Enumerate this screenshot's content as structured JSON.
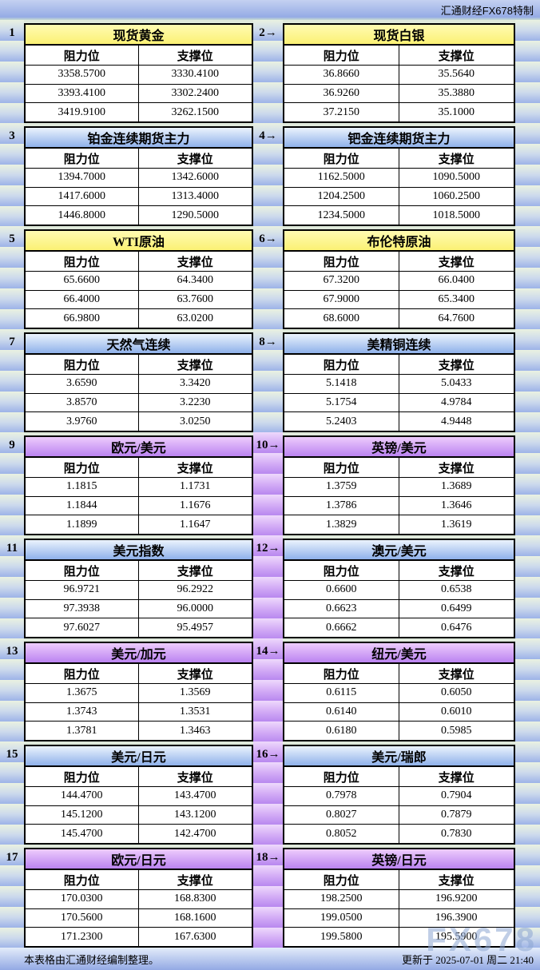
{
  "top_bar": {
    "brand": "汇通财经FX678特制"
  },
  "labels": {
    "resistance": "阻力位",
    "support": "支撑位"
  },
  "sections": [
    {
      "gap": "green",
      "left": {
        "num": "1",
        "title": "现货黄金",
        "theme": "yellow",
        "rows": [
          [
            "3358.5700",
            "3330.4100"
          ],
          [
            "3393.4100",
            "3302.2400"
          ],
          [
            "3419.9100",
            "3262.1500"
          ]
        ]
      },
      "right": {
        "num": "2→",
        "title": "现货白银",
        "theme": "yellow",
        "rows": [
          [
            "36.8660",
            "35.5640"
          ],
          [
            "36.9260",
            "35.3880"
          ],
          [
            "37.2150",
            "35.1000"
          ]
        ]
      }
    },
    {
      "gap": "green",
      "left": {
        "num": "3",
        "title": "铂金连续期货主力",
        "theme": "blue",
        "rows": [
          [
            "1394.7000",
            "1342.6000"
          ],
          [
            "1417.6000",
            "1313.4000"
          ],
          [
            "1446.8000",
            "1290.5000"
          ]
        ]
      },
      "right": {
        "num": "4→",
        "title": "钯金连续期货主力",
        "theme": "blue",
        "rows": [
          [
            "1162.5000",
            "1090.5000"
          ],
          [
            "1204.2500",
            "1060.2500"
          ],
          [
            "1234.5000",
            "1018.5000"
          ]
        ]
      }
    },
    {
      "gap": "green",
      "left": {
        "num": "5",
        "title": "WTI原油",
        "theme": "yellow",
        "rows": [
          [
            "65.6600",
            "64.3400"
          ],
          [
            "66.4000",
            "63.7600"
          ],
          [
            "66.9800",
            "63.0200"
          ]
        ]
      },
      "right": {
        "num": "6→",
        "title": "布伦特原油",
        "theme": "yellow",
        "rows": [
          [
            "67.3200",
            "66.0400"
          ],
          [
            "67.9000",
            "65.3400"
          ],
          [
            "68.6000",
            "64.7600"
          ]
        ]
      }
    },
    {
      "gap": "green",
      "left": {
        "num": "7",
        "title": "天然气连续",
        "theme": "blue",
        "rows": [
          [
            "3.6590",
            "3.3420"
          ],
          [
            "3.8570",
            "3.2230"
          ],
          [
            "3.9760",
            "3.0250"
          ]
        ]
      },
      "right": {
        "num": "8→",
        "title": "美精铜连续",
        "theme": "blue",
        "rows": [
          [
            "5.1418",
            "5.0433"
          ],
          [
            "5.1754",
            "4.9784"
          ],
          [
            "5.2403",
            "4.9448"
          ]
        ]
      }
    },
    {
      "gap": "purple",
      "left": {
        "num": "9",
        "title": "欧元/美元",
        "theme": "purple",
        "rows": [
          [
            "1.1815",
            "1.1731"
          ],
          [
            "1.1844",
            "1.1676"
          ],
          [
            "1.1899",
            "1.1647"
          ]
        ]
      },
      "right": {
        "num": "10→",
        "title": "英镑/美元",
        "theme": "purple",
        "rows": [
          [
            "1.3759",
            "1.3689"
          ],
          [
            "1.3786",
            "1.3646"
          ],
          [
            "1.3829",
            "1.3619"
          ]
        ]
      }
    },
    {
      "gap": "purple",
      "left": {
        "num": "11",
        "title": "美元指数",
        "theme": "blue",
        "rows": [
          [
            "96.9721",
            "96.2922"
          ],
          [
            "97.3938",
            "96.0000"
          ],
          [
            "97.6027",
            "95.4957"
          ]
        ]
      },
      "right": {
        "num": "12→",
        "title": "澳元/美元",
        "theme": "blue",
        "rows": [
          [
            "0.6600",
            "0.6538"
          ],
          [
            "0.6623",
            "0.6499"
          ],
          [
            "0.6662",
            "0.6476"
          ]
        ]
      }
    },
    {
      "gap": "purple",
      "left": {
        "num": "13",
        "title": "美元/加元",
        "theme": "purple",
        "rows": [
          [
            "1.3675",
            "1.3569"
          ],
          [
            "1.3743",
            "1.3531"
          ],
          [
            "1.3781",
            "1.3463"
          ]
        ]
      },
      "right": {
        "num": "14→",
        "title": "纽元/美元",
        "theme": "purple",
        "rows": [
          [
            "0.6115",
            "0.6050"
          ],
          [
            "0.6140",
            "0.6010"
          ],
          [
            "0.6180",
            "0.5985"
          ]
        ]
      }
    },
    {
      "gap": "purple",
      "left": {
        "num": "15",
        "title": "美元/日元",
        "theme": "blue",
        "rows": [
          [
            "144.4700",
            "143.4700"
          ],
          [
            "145.1200",
            "143.1200"
          ],
          [
            "145.4700",
            "142.4700"
          ]
        ]
      },
      "right": {
        "num": "16→",
        "title": "美元/瑞郎",
        "theme": "blue",
        "rows": [
          [
            "0.7978",
            "0.7904"
          ],
          [
            "0.8027",
            "0.7879"
          ],
          [
            "0.8052",
            "0.7830"
          ]
        ]
      }
    },
    {
      "gap": "purple",
      "left": {
        "num": "17",
        "title": "欧元/日元",
        "theme": "purple",
        "rows": [
          [
            "170.0300",
            "168.8300"
          ],
          [
            "170.5600",
            "168.1600"
          ],
          [
            "171.2300",
            "167.6300"
          ]
        ]
      },
      "right": {
        "num": "18→",
        "title": "英镑/日元",
        "theme": "purple",
        "rows": [
          [
            "198.2500",
            "196.9200"
          ],
          [
            "199.0500",
            "196.3900"
          ],
          [
            "199.5800",
            "195.5900"
          ]
        ]
      }
    }
  ],
  "footer": {
    "left": "本表格由汇通财经编制整理。",
    "right": "更新于 2025-07-01 周二 21:40"
  },
  "watermark": "FX678",
  "colors": {
    "header_yellow": "#FBF174",
    "header_blue": "#A9C6EE",
    "header_purple": "#C793F3",
    "strip_green": "#EAF2E1",
    "strip_blue": "#9DB3E8",
    "gap_purple": "#B888EF",
    "border": "#000000"
  }
}
